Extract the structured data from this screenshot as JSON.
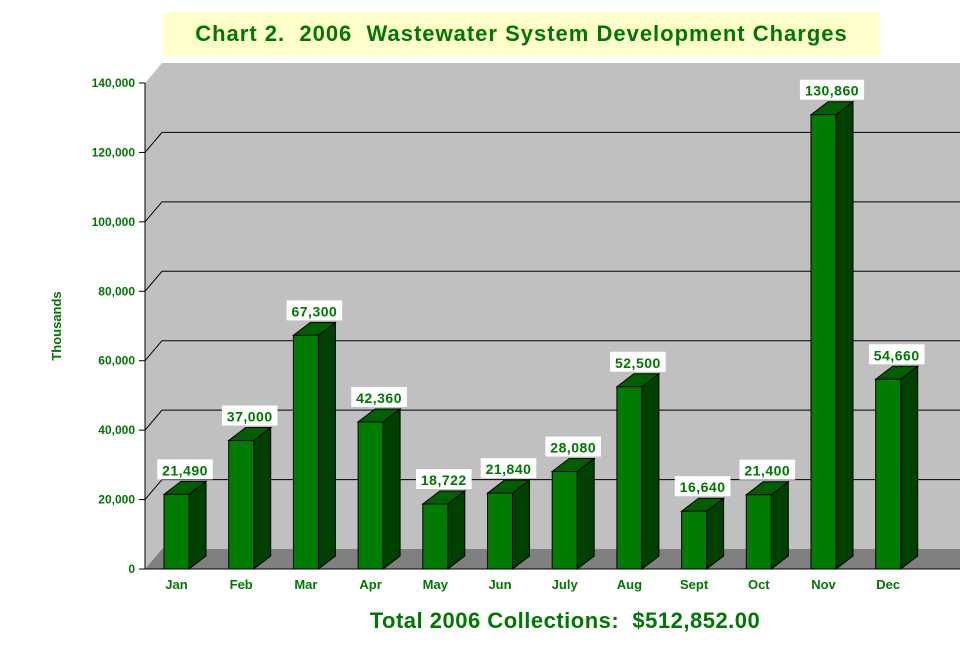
{
  "chart_data": {
    "type": "bar",
    "title": "Chart 2.  2006  Wastewater System Development Charges",
    "ylabel": "Thousands",
    "xlabel": "",
    "categories": [
      "Jan",
      "Feb",
      "Mar",
      "Apr",
      "May",
      "Jun",
      "July",
      "Aug",
      "Sept",
      "Oct",
      "Nov",
      "Dec"
    ],
    "values": [
      21490,
      37000,
      67300,
      42360,
      18722,
      21840,
      28080,
      52500,
      16640,
      21400,
      130860,
      54660
    ],
    "data_labels": [
      "21,490",
      "37,000",
      "67,300",
      "42,360",
      "18,722",
      "21,840",
      "28,080",
      "52,500",
      "16,640",
      "21,400",
      "130,860",
      "54,660"
    ],
    "ylim": [
      0,
      140000
    ],
    "yticks": [
      0,
      20000,
      40000,
      60000,
      80000,
      100000,
      120000,
      140000
    ],
    "ytick_labels": [
      "0",
      "20,000",
      "40,000",
      "60,000",
      "80,000",
      "100,000",
      "120,000",
      "140,000"
    ],
    "grid": true,
    "annotation": "Total 2006 Collections:  $512,852.00",
    "colors": {
      "bar_front": "#007c00",
      "bar_side": "#004000",
      "bar_top": "#006000",
      "wall": "#c0c0c0",
      "floor": "#808080",
      "text": "#007700",
      "title_bg": "#ffffcc"
    }
  }
}
